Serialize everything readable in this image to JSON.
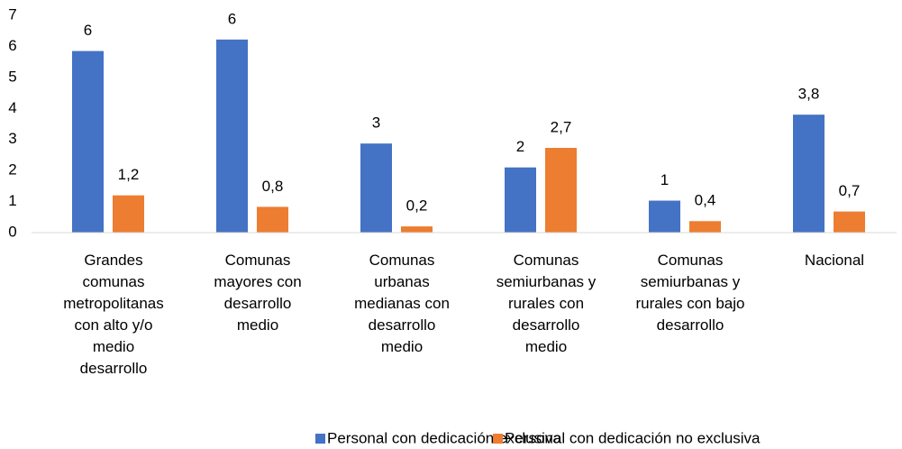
{
  "chart_data": {
    "type": "bar",
    "categories": [
      "Grandes\ncomunas\nmetropolitanas\ncon alto y/o\nmedio\ndesarrollo",
      "Comunas\nmayores con\ndesarrollo\nmedio",
      "Comunas\nurbanas\nmedianas con\ndesarrollo\nmedio",
      "Comunas\nsemiurbanas y\nrurales con\ndesarrollo\nmedio",
      "Comunas\nsemiurbanas y\nrurales con bajo\ndesarrollo",
      "Nacional"
    ],
    "series": [
      {
        "name": "Personal con dedicación exclusiva",
        "color": "#4472c4",
        "values": [
          5.85,
          6.22,
          2.87,
          2.1,
          1.03,
          3.8
        ],
        "value_labels": [
          "6",
          "6",
          "3",
          "2",
          "1",
          "3,8"
        ]
      },
      {
        "name": "Personal con dedicación no exclusiva",
        "color": "#ed7d31",
        "values": [
          1.2,
          0.83,
          0.2,
          2.73,
          0.37,
          0.68
        ],
        "value_labels": [
          "1,2",
          "0,8",
          "0,2",
          "2,7",
          "0,4",
          "0,7"
        ]
      }
    ],
    "ylim": [
      0,
      7
    ],
    "yticks": [
      0,
      1,
      2,
      3,
      4,
      5,
      6,
      7
    ],
    "grid": false,
    "legend": "bottom"
  }
}
